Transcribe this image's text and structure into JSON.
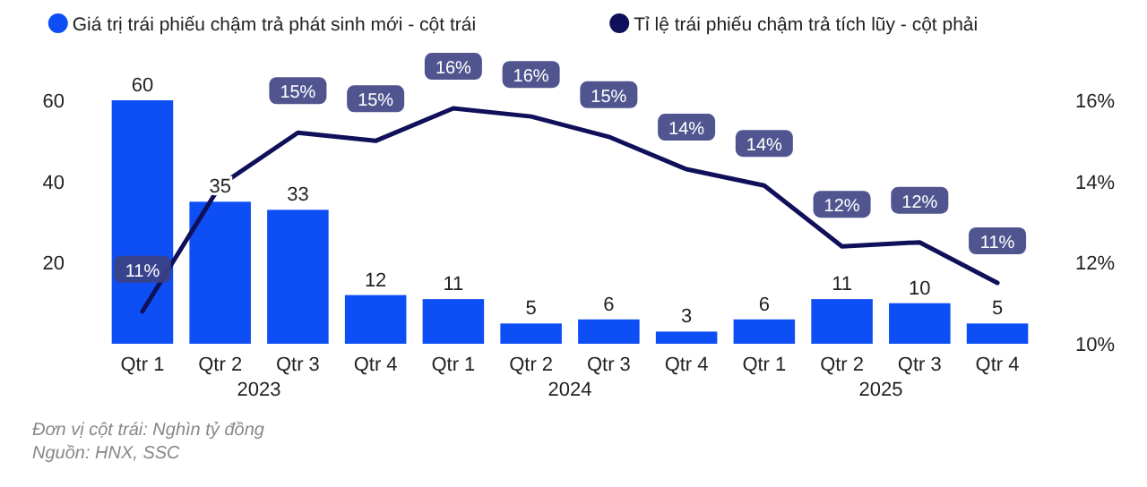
{
  "chart_data": {
    "type": "bar",
    "categories": [
      "Qtr 1",
      "Qtr 2",
      "Qtr 3",
      "Qtr 4",
      "Qtr 1",
      "Qtr 2",
      "Qtr 3",
      "Qtr 4",
      "Qtr 1",
      "Qtr 2",
      "Qtr 3",
      "Qtr 4"
    ],
    "series": [
      {
        "name": "Giá trị trái phiếu chậm trả phát sinh mới - cột trái",
        "color": "#0d4ef5",
        "values": [
          60,
          35,
          33,
          12,
          11,
          5,
          6,
          3,
          6,
          11,
          10,
          5
        ],
        "data_labels": true
      },
      {
        "name": "Tỉ lệ trái phiếu chậm trả tích lũy - cột phải",
        "type": "line",
        "axis": "y2",
        "color": "#10105a",
        "values": [
          10.8,
          13.9,
          15.2,
          15.0,
          15.8,
          15.6,
          15.1,
          14.3,
          13.9,
          12.4,
          12.5,
          11.5
        ],
        "value_labels": [
          "11%",
          null,
          "15%",
          "15%",
          "16%",
          "16%",
          "15%",
          "14%",
          "14%",
          "12%",
          "12%",
          "11%"
        ]
      }
    ],
    "ylim": [
      0,
      60
    ],
    "yticks": [
      20,
      40,
      60
    ],
    "y2lim": [
      10,
      16
    ],
    "y2ticks": [
      {
        "value": 10,
        "label": "10%"
      },
      {
        "value": 12,
        "label": "12%"
      },
      {
        "value": 14,
        "label": "14%"
      },
      {
        "value": 16,
        "label": "16%"
      }
    ],
    "legend": "top",
    "grid": false,
    "marker": "none",
    "line_style": "solid",
    "annotations": [
      "2023",
      "2024",
      "2025",
      "Đơn vị cột trái: Nghìn tỷ đồng",
      "Nguồn: HNX, SSC"
    ]
  }
}
